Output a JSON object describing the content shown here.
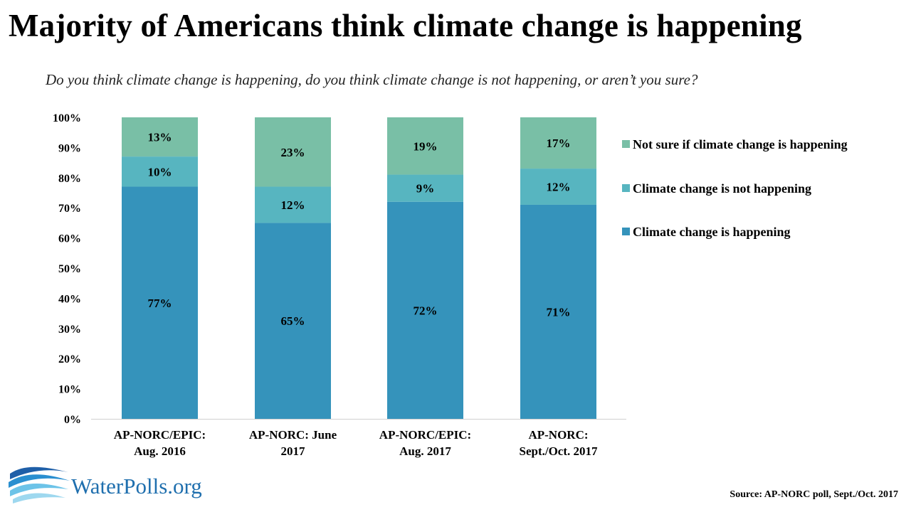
{
  "title": "Majority of  Americans think climate change is happening",
  "subtitle": "Do you think climate change is happening, do you think climate change is not happening, or aren’t you sure?",
  "source": "Source: AP-NORC poll, Sept./Oct. 2017",
  "logo_text": "WaterPolls.org",
  "colors": {
    "happening": "#3593bb",
    "not_happening": "#57b5c0",
    "not_sure": "#79bfa6",
    "logo_blue": "#1f6fae"
  },
  "chart_data": {
    "type": "bar",
    "stacked": true,
    "categories": [
      [
        "AP-NORC/EPIC:",
        "Aug. 2016"
      ],
      [
        "AP-NORC: June",
        "2017"
      ],
      [
        "AP-NORC/EPIC:",
        "Aug. 2017"
      ],
      [
        "AP-NORC:",
        "Sept./Oct. 2017"
      ]
    ],
    "series": [
      {
        "name": "Climate change is happening",
        "values": [
          77,
          65,
          72,
          71
        ],
        "labels": [
          "77%",
          "65%",
          "72%",
          "71%"
        ],
        "color": "#3593bb"
      },
      {
        "name": "Climate change is not happening",
        "values": [
          10,
          12,
          9,
          12
        ],
        "labels": [
          "10%",
          "12%",
          "9%",
          "12%"
        ],
        "color": "#57b5c0"
      },
      {
        "name": "Not sure if climate change is happening",
        "values": [
          13,
          23,
          19,
          17
        ],
        "labels": [
          "13%",
          "23%",
          "19%",
          "17%"
        ],
        "color": "#79bfa6"
      }
    ],
    "ylim": [
      0,
      100
    ],
    "yticks": [
      "0%",
      "10%",
      "20%",
      "30%",
      "40%",
      "50%",
      "60%",
      "70%",
      "80%",
      "90%",
      "100%"
    ],
    "legend": {
      "placement": "right",
      "order": [
        "Not sure if climate change is happening",
        "Climate change is not happening",
        "Climate change is happening"
      ]
    },
    "grid": false
  }
}
